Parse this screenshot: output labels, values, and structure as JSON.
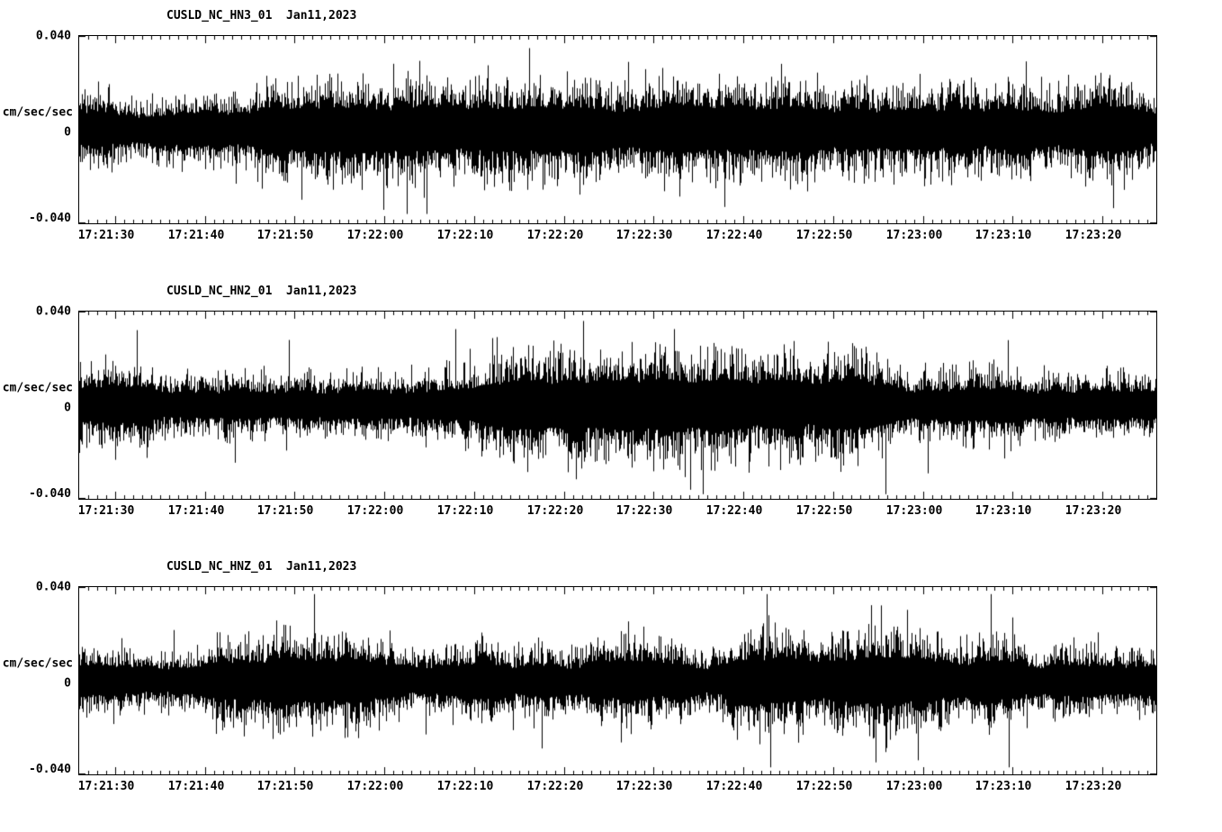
{
  "page": {
    "background_color": "#ffffff",
    "trace_color": "#000000"
  },
  "axis": {
    "y_top_label": "0.040",
    "y_unit_label": "cm/sec/sec",
    "y_zero_label": "0",
    "y_bottom_label": "-0.040"
  },
  "chart_data": [
    {
      "type": "line",
      "title": "CUSLD_NC_HN3_01  Jan11,2023",
      "station": "CUSLD_NC_HN3_01",
      "date": "Jan11,2023",
      "ylabel": "cm/sec/sec",
      "ylim": [
        -0.04,
        0.04
      ],
      "ytick_labels": [
        "0.040",
        "0",
        "-0.040"
      ],
      "x_tick_labels": [
        "17:21:30",
        "17:21:40",
        "17:21:50",
        "17:22:00",
        "17:22:10",
        "17:22:20",
        "17:22:30",
        "17:22:40",
        "17:22:50",
        "17:23:00",
        "17:23:10",
        "17:23:20"
      ],
      "x_tick_interval_seconds": 10,
      "signal_description": "continuous dense ground-acceleration noise trace, zero-mean",
      "approx_rms_amplitude": 0.012,
      "approx_envelope_amplitude": 0.018,
      "approx_peak_amplitude": 0.036,
      "grid": false,
      "legend": false
    },
    {
      "type": "line",
      "title": "CUSLD_NC_HN2_01  Jan11,2023",
      "station": "CUSLD_NC_HN2_01",
      "date": "Jan11,2023",
      "ylabel": "cm/sec/sec",
      "ylim": [
        -0.04,
        0.04
      ],
      "ytick_labels": [
        "0.040",
        "0",
        "-0.040"
      ],
      "x_tick_labels": [
        "17:21:30",
        "17:21:40",
        "17:21:50",
        "17:22:00",
        "17:22:10",
        "17:22:20",
        "17:22:30",
        "17:22:40",
        "17:22:50",
        "17:23:00",
        "17:23:10",
        "17:23:20"
      ],
      "x_tick_interval_seconds": 10,
      "signal_description": "continuous dense ground-acceleration noise trace, zero-mean",
      "approx_rms_amplitude": 0.013,
      "approx_envelope_amplitude": 0.02,
      "approx_peak_amplitude": 0.038,
      "grid": false,
      "legend": false
    },
    {
      "type": "line",
      "title": "CUSLD_NC_HNZ_01  Jan11,2023",
      "station": "CUSLD_NC_HNZ_01",
      "date": "Jan11,2023",
      "ylabel": "cm/sec/sec",
      "ylim": [
        -0.04,
        0.04
      ],
      "ytick_labels": [
        "0.040",
        "0",
        "-0.040"
      ],
      "x_tick_labels": [
        "17:21:30",
        "17:21:40",
        "17:21:50",
        "17:22:00",
        "17:22:10",
        "17:22:20",
        "17:22:30",
        "17:22:40",
        "17:22:50",
        "17:23:00",
        "17:23:10",
        "17:23:20"
      ],
      "x_tick_interval_seconds": 10,
      "signal_description": "continuous dense ground-acceleration noise trace, zero-mean",
      "approx_rms_amplitude": 0.013,
      "approx_envelope_amplitude": 0.019,
      "approx_peak_amplitude": 0.037,
      "grid": false,
      "legend": false
    }
  ]
}
